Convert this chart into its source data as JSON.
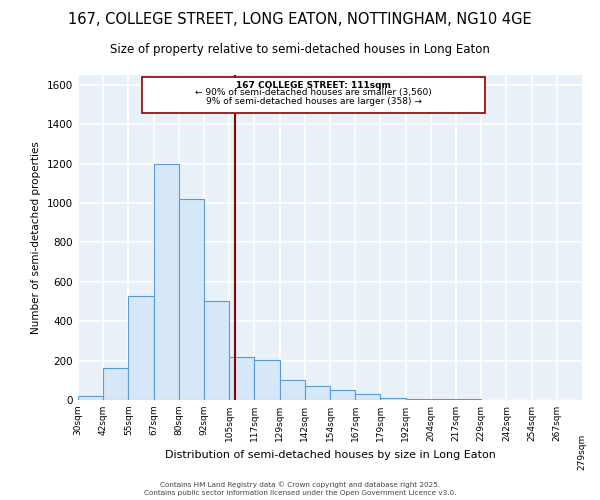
{
  "title": "167, COLLEGE STREET, LONG EATON, NOTTINGHAM, NG10 4GE",
  "subtitle": "Size of property relative to semi-detached houses in Long Eaton",
  "xlabel": "Distribution of semi-detached houses by size in Long Eaton",
  "ylabel": "Number of semi-detached properties",
  "bar_edges": [
    30,
    43,
    56,
    69,
    82,
    95,
    108,
    121,
    134,
    147,
    160,
    173,
    186,
    199,
    212,
    225,
    238,
    251,
    264,
    277,
    290
  ],
  "bar_heights": [
    20,
    165,
    530,
    1200,
    1020,
    505,
    220,
    205,
    100,
    70,
    50,
    30,
    10,
    5,
    3,
    3,
    2,
    1,
    0,
    0
  ],
  "vline_x": 111,
  "vline_color": "#8B0000",
  "bar_facecolor": "#d6e8f7",
  "bar_edgecolor": "#5b9bd5",
  "ylim": [
    0,
    1650
  ],
  "xlim": [
    30,
    290
  ],
  "background_color": "#e8f0f8",
  "grid_color": "#ffffff",
  "annotation_line1": "167 COLLEGE STREET: 111sqm",
  "annotation_line2": "← 90% of semi-detached houses are smaller (3,560)",
  "annotation_line3": "9% of semi-detached houses are larger (358) →",
  "footer1": "Contains HM Land Registry data © Crown copyright and database right 2025.",
  "footer2": "Contains public sector information licensed under the Open Government Licence v3.0.",
  "tick_positions": [
    30,
    43,
    56,
    69,
    82,
    95,
    108,
    121,
    134,
    147,
    160,
    173,
    186,
    199,
    212,
    225,
    238,
    251,
    264,
    277
  ],
  "tick_labels": [
    "30sqm",
    "42sqm",
    "55sqm",
    "67sqm",
    "80sqm",
    "92sqm",
    "105sqm",
    "117sqm",
    "129sqm",
    "142sqm",
    "154sqm",
    "167sqm",
    "179sqm",
    "192sqm",
    "204sqm",
    "217sqm",
    "229sqm",
    "242sqm",
    "254sqm",
    "267sqm"
  ]
}
